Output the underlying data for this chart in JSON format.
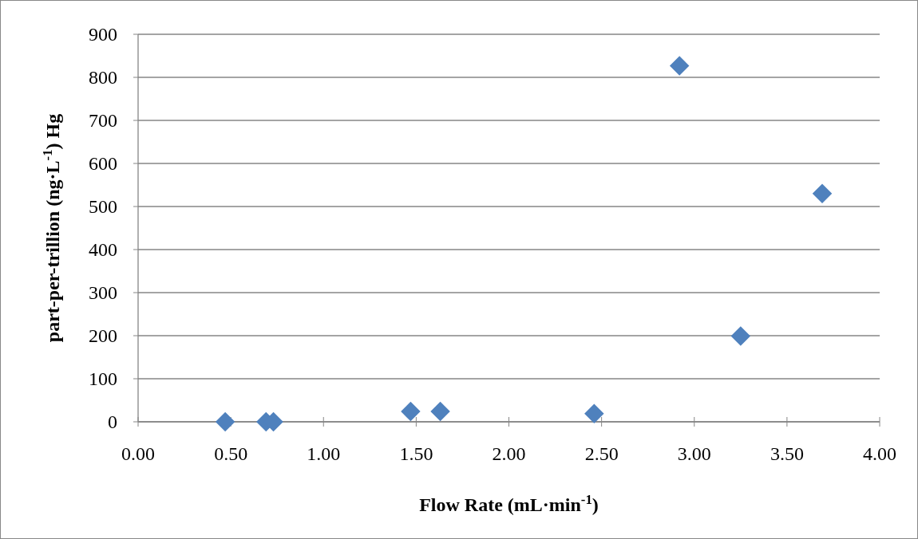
{
  "chart_data": {
    "type": "scatter",
    "xlabel": "Flow Rate (mL·min$^{-1}$)",
    "ylabel": "part-per-trillion (ng·L$^{-1}$) Hg",
    "x": [
      0.47,
      0.69,
      0.73,
      1.47,
      1.63,
      2.46,
      2.92,
      3.25,
      3.69
    ],
    "values": [
      0,
      0,
      0,
      24,
      24,
      19,
      827,
      199,
      530
    ],
    "color": "#4f81bd",
    "marker": "diamond",
    "xlim": [
      0,
      4
    ],
    "xticks": [
      {
        "value": 0,
        "label": "0.00"
      },
      {
        "value": 0.5,
        "label": "0.50"
      },
      {
        "value": 1,
        "label": "1.00"
      },
      {
        "value": 1.5,
        "label": "1.50"
      },
      {
        "value": 2,
        "label": "2.00"
      },
      {
        "value": 2.5,
        "label": "2.50"
      },
      {
        "value": 3,
        "label": "3.00"
      },
      {
        "value": 3.5,
        "label": "3.50"
      },
      {
        "value": 4,
        "label": "4.00"
      }
    ],
    "ylim": [
      0,
      900
    ],
    "yticks": [
      0,
      100,
      200,
      300,
      400,
      500,
      600,
      700,
      800,
      900
    ],
    "grid": "y"
  }
}
